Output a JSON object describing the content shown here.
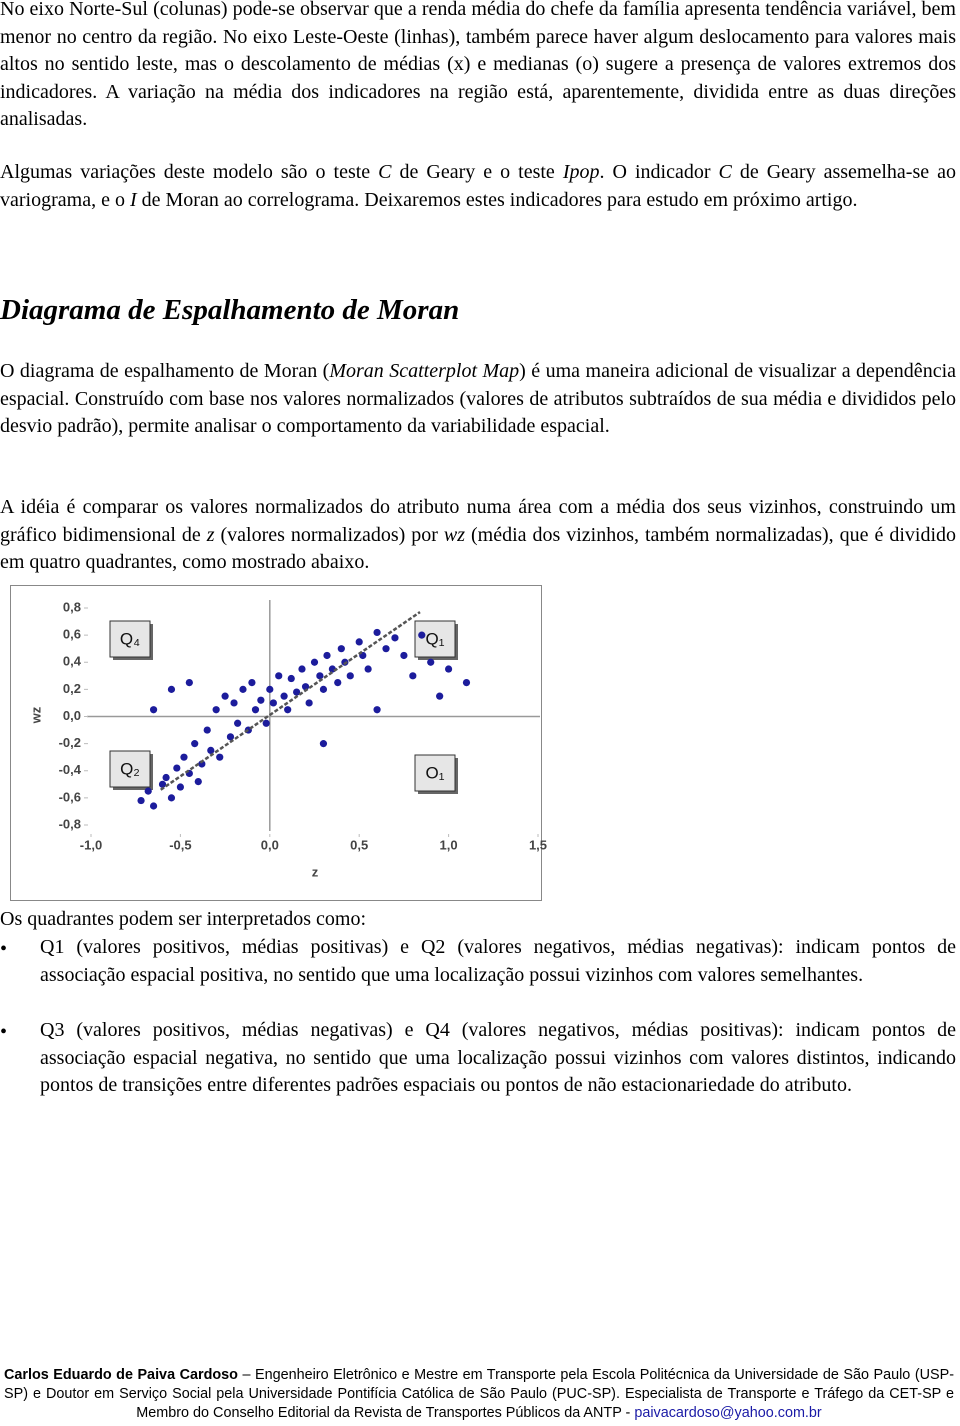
{
  "body": [
    [
      "No eixo Norte-Sul (colunas) pode-se observar que a renda média do chefe da família apresenta tendência variável, bem menor no centro da região. No eixo Leste-Oeste (linhas), também parece haver algum deslocamento para valores mais altos no sentido leste, mas o descolamento de médias (x) e medianas (o) sugere a presença de valores extremos dos indicadores. A variação na média dos indicadores na região está, aparentemente, dividida entre as duas direções analisadas."
    ],
    [
      "Algumas variações deste modelo são o teste ",
      "C",
      " de Geary e o teste ",
      "Ipop",
      ". O indicador ",
      "C",
      " de Geary assemelha-se ao variograma, e o ",
      "I",
      " de Moran ao correlograma. Deixaremos estes indicadores para estudo em próximo artigo."
    ]
  ],
  "heading": "Diagrama de Espalhamento de Moran",
  "section": [
    [
      "O diagrama de espalhamento de Moran (",
      "Moran Scatterplot Map",
      ") é uma maneira adicional de visualizar a dependência espacial. Construído com base nos valores normalizados (valores de atributos subtraídos de sua média e divididos pelo desvio padrão), permite analisar o comportamento da variabilidade espacial."
    ],
    [
      "A idéia é comparar os valores normalizados do atributo numa área com a média dos seus vizinhos, construindo um gráfico bidimensional de ",
      "z",
      " (valores normalizados) por ",
      "wz",
      " (média dos vizinhos, também normalizadas), que é dividido em quatro quadrantes, como mostrado abaixo."
    ]
  ],
  "chart_data": {
    "type": "scatter",
    "xlabel": "z",
    "ylabel": "wz",
    "color": "#1c1c9c",
    "x": [
      -0.72,
      -0.68,
      -0.65,
      -0.6,
      -0.58,
      -0.55,
      -0.52,
      -0.5,
      -0.48,
      -0.45,
      -0.42,
      -0.4,
      -0.38,
      -0.35,
      -0.33,
      -0.3,
      -0.28,
      -0.25,
      -0.22,
      -0.2,
      -0.18,
      -0.15,
      -0.12,
      -0.1,
      -0.08,
      -0.05,
      -0.02,
      0.0,
      0.02,
      0.05,
      0.08,
      0.1,
      0.12,
      0.15,
      0.18,
      0.2,
      0.22,
      0.25,
      0.28,
      0.3,
      0.32,
      0.35,
      0.38,
      0.4,
      0.42,
      0.45,
      0.5,
      0.52,
      0.55,
      0.6,
      0.65,
      0.7,
      0.75,
      0.8,
      0.85,
      0.9,
      0.95,
      1.0,
      -0.65,
      -0.55,
      -0.45,
      0.3,
      0.6,
      1.1
    ],
    "y": [
      -0.62,
      -0.55,
      -0.66,
      -0.5,
      -0.45,
      -0.6,
      -0.38,
      -0.52,
      -0.3,
      -0.42,
      -0.2,
      -0.48,
      -0.35,
      -0.1,
      -0.25,
      0.05,
      -0.3,
      0.15,
      -0.15,
      0.1,
      -0.05,
      0.2,
      -0.1,
      0.25,
      0.05,
      0.12,
      -0.05,
      0.2,
      0.1,
      0.3,
      0.15,
      0.05,
      0.28,
      0.18,
      0.35,
      0.22,
      0.1,
      0.4,
      0.3,
      0.2,
      0.45,
      0.35,
      0.25,
      0.5,
      0.4,
      0.3,
      0.55,
      0.45,
      0.35,
      0.62,
      0.5,
      0.58,
      0.45,
      0.3,
      0.6,
      0.4,
      0.15,
      0.35,
      0.05,
      0.2,
      0.25,
      -0.2,
      0.05,
      0.25
    ],
    "regression_line": {
      "x": [
        -0.61,
        0.84
      ],
      "y": [
        -0.54,
        0.77
      ]
    },
    "xlim": [
      -1.0,
      1.5
    ],
    "ylim": [
      -0.8,
      0.8
    ],
    "xticks": [
      {
        "value": -1.0,
        "label": "-1,0"
      },
      {
        "value": -0.5,
        "label": "-0,5"
      },
      {
        "value": 0.0,
        "label": "0,0"
      },
      {
        "value": 0.5,
        "label": "0,5"
      },
      {
        "value": 1.0,
        "label": "1,0"
      },
      {
        "value": 1.5,
        "label": "1,5"
      }
    ],
    "yticks": [
      {
        "value": 0.8,
        "label": "0,8"
      },
      {
        "value": 0.6,
        "label": "0,6"
      },
      {
        "value": 0.4,
        "label": "0,4"
      },
      {
        "value": 0.2,
        "label": "0,2"
      },
      {
        "value": 0.0,
        "label": "0,0"
      },
      {
        "value": -0.2,
        "label": "-0,2"
      },
      {
        "value": -0.4,
        "label": "-0,4"
      },
      {
        "value": -0.6,
        "label": "-0,6"
      },
      {
        "value": -0.8,
        "label": "-0,8"
      }
    ],
    "quadrant_labels": [
      "Q₄",
      "Q₁",
      "Q₂",
      "O₁"
    ]
  },
  "intro": "Os quadrantes podem ser interpretados como:",
  "bullets": [
    "Q1 (valores positivos, médias positivas) e Q2 (valores negativos, médias negativas): indicam pontos de associação espacial positiva, no sentido que uma localização possui vizinhos com valores semelhantes.",
    "Q3 (valores positivos, médias negativas) e Q4 (valores negativos, médias positivas): indicam pontos de associação espacial negativa, no sentido que uma localização possui vizinhos com valores distintos, indicando pontos de transições entre diferentes padrões espaciais ou pontos de não estacionariedade do atributo."
  ],
  "footer": {
    "author": "Carlos Eduardo de Paiva Cardoso",
    "text": " – Engenheiro Eletrônico e Mestre em Transporte pela Escola Politécnica da Universidade de São Paulo (USP-SP) e Doutor em Serviço Social pela Universidade Pontifícia Católica de São Paulo (PUC-SP). Especialista de Transporte e Tráfego da CET-SP e Membro do Conselho Editorial da Revista de Transportes Públicos da ANTP - ",
    "email": "paivacardoso@yahoo.com.br"
  }
}
